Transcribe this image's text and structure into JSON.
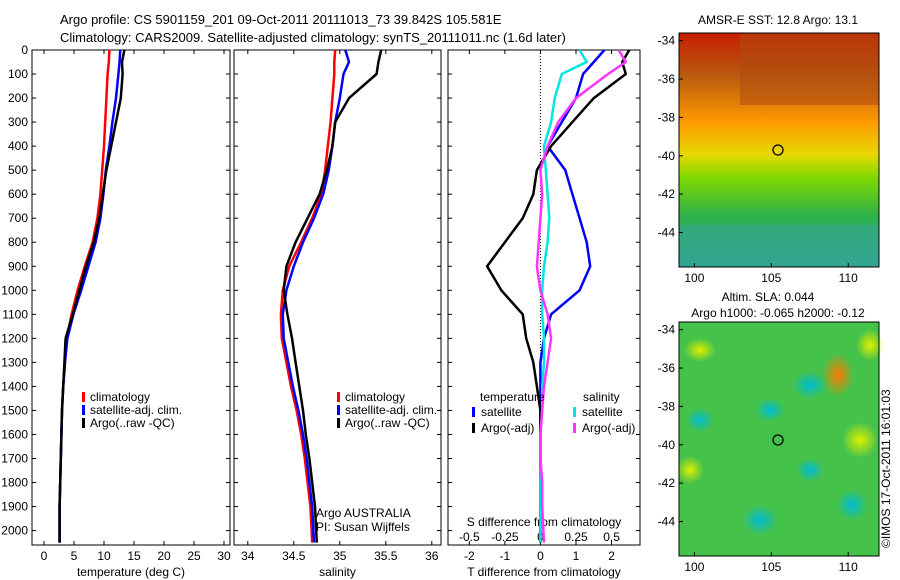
{
  "title": {
    "line1": "Argo profile: CS 5901159_201 09-Oct-2011 20111013_73 39.842S 105.581E",
    "line2": "Climatology: CARS2009. Satellite-adjusted climatology: synTS_20111011.nc (1.6d later)"
  },
  "side_label": "©IMOS 17-Oct-2011 16:01:03",
  "colors": {
    "climatology": "#ff0000",
    "satellite": "#0000ff",
    "argo": "#000000",
    "satellite_s": "#00e5e5",
    "argo_s": "#ff33ff"
  },
  "chart_data": [
    {
      "type": "line",
      "xlabel": "temperature (deg C)",
      "ylabel": "",
      "xlim": [
        -2,
        31
      ],
      "ylim": [
        2060,
        0
      ],
      "xticks": [
        0,
        5,
        10,
        15,
        20,
        25,
        30
      ],
      "yticks": [
        0,
        100,
        200,
        300,
        400,
        500,
        600,
        700,
        800,
        900,
        1000,
        1100,
        1200,
        1300,
        1400,
        1500,
        1600,
        1700,
        1800,
        1900,
        2000
      ],
      "legend": [
        "climatology",
        "satellite-adj. clim.",
        "Argo(..raw -QC)"
      ],
      "series": [
        {
          "name": "climatology",
          "x": [
            10.9,
            10.8,
            10.6,
            10.4,
            10.2,
            10.0,
            9.7,
            9.4,
            8.9,
            8.1,
            6.8,
            5.6,
            4.6,
            3.8,
            3.5,
            3.2,
            3.0,
            2.9,
            2.8,
            2.7,
            2.6,
            2.6
          ],
          "y": [
            0,
            50,
            100,
            200,
            300,
            400,
            500,
            600,
            700,
            800,
            900,
            1000,
            1100,
            1200,
            1300,
            1400,
            1500,
            1600,
            1700,
            1800,
            1900,
            2050
          ]
        },
        {
          "name": "satellite-adj. clim.",
          "x": [
            12.7,
            12.6,
            12.4,
            12.0,
            11.4,
            10.9,
            10.3,
            9.9,
            9.4,
            8.6,
            7.4,
            6.2,
            4.9,
            3.9,
            3.5,
            3.2,
            3.0,
            2.9,
            2.8,
            2.7,
            2.6,
            2.6
          ],
          "y": [
            0,
            50,
            100,
            200,
            300,
            400,
            500,
            600,
            700,
            800,
            900,
            1000,
            1100,
            1200,
            1300,
            1400,
            1500,
            1600,
            1700,
            1800,
            1900,
            2050
          ]
        },
        {
          "name": "Argo(..raw -QC)",
          "x": [
            13.4,
            13.0,
            13.1,
            12.8,
            12.0,
            11.2,
            10.4,
            9.8,
            9.2,
            8.3,
            7.0,
            5.9,
            4.8,
            3.6,
            3.4,
            3.2,
            3.0,
            2.9,
            2.8,
            2.7,
            2.6,
            2.6
          ],
          "y": [
            0,
            50,
            100,
            200,
            300,
            400,
            500,
            600,
            700,
            800,
            900,
            1000,
            1100,
            1200,
            1300,
            1400,
            1500,
            1600,
            1700,
            1800,
            1900,
            2050
          ]
        }
      ]
    },
    {
      "type": "line",
      "xlabel": "salinity",
      "ylabel": "",
      "xlim": [
        33.85,
        36.1
      ],
      "ylim": [
        2060,
        0
      ],
      "xticks": [
        34,
        34.5,
        35,
        35.5,
        36
      ],
      "legend": [
        "climatology",
        "satellite-adj. clim.",
        "Argo(..raw -QC)"
      ],
      "annotation": [
        "Argo AUSTRALIA",
        "PI: Susan Wijffels"
      ],
      "series": [
        {
          "name": "climatology",
          "x": [
            34.95,
            34.94,
            34.94,
            34.92,
            34.9,
            34.87,
            34.84,
            34.8,
            34.7,
            34.58,
            34.45,
            34.38,
            34.36,
            34.37,
            34.42,
            34.47,
            34.53,
            34.58,
            34.62,
            34.65,
            34.68,
            34.7
          ],
          "y": [
            0,
            50,
            100,
            200,
            300,
            400,
            500,
            600,
            700,
            800,
            900,
            1000,
            1100,
            1200,
            1300,
            1400,
            1500,
            1600,
            1700,
            1800,
            1900,
            2050
          ]
        },
        {
          "name": "satellite-adj. clim.",
          "x": [
            35.06,
            35.1,
            35.04,
            35.0,
            34.95,
            34.92,
            34.88,
            34.82,
            34.72,
            34.6,
            34.5,
            34.42,
            34.38,
            34.39,
            34.44,
            34.49,
            34.55,
            34.6,
            34.64,
            34.67,
            34.7,
            34.72
          ],
          "y": [
            0,
            50,
            100,
            200,
            300,
            400,
            500,
            600,
            700,
            800,
            900,
            1000,
            1100,
            1200,
            1300,
            1400,
            1500,
            1600,
            1700,
            1800,
            1900,
            2050
          ]
        },
        {
          "name": "Argo(..raw -QC)",
          "x": [
            35.45,
            35.42,
            35.4,
            35.1,
            34.95,
            34.92,
            34.86,
            34.78,
            34.65,
            34.52,
            34.42,
            34.39,
            34.43,
            34.48,
            34.52,
            34.56,
            34.6,
            34.63,
            34.67,
            34.7,
            34.73,
            34.75
          ],
          "y": [
            0,
            50,
            100,
            200,
            300,
            400,
            500,
            600,
            700,
            800,
            900,
            1000,
            1100,
            1200,
            1300,
            1400,
            1500,
            1600,
            1700,
            1800,
            1900,
            2050
          ]
        }
      ]
    },
    {
      "type": "line",
      "xlabel": "T difference from climatology",
      "xlabel2": "S difference from climatology",
      "xlim": [
        -2.6,
        2.8
      ],
      "ylim": [
        2060,
        0
      ],
      "xticks": [
        -2,
        -1,
        0,
        1,
        2
      ],
      "xticks2_values": [
        -0.5,
        -0.25,
        0,
        0.25,
        0.5
      ],
      "xticks2_labels": [
        "-0.5",
        "-0.25",
        "0",
        "0.25",
        "0.5"
      ],
      "legend_groups": [
        {
          "heading": "temperature",
          "items": [
            "satellite",
            "Argo(-adj)"
          ]
        },
        {
          "heading": "salinity",
          "items": [
            "satellite",
            "Argo(-adj)"
          ]
        }
      ],
      "series": [
        {
          "name": "temperature satellite",
          "x": [
            1.8,
            1.5,
            1.2,
            1.0,
            0.6,
            0.2,
            0.7,
            0.9,
            1.1,
            1.3,
            1.4,
            1.1,
            0.3,
            0.1,
            0,
            0,
            0,
            0,
            0,
            0,
            0,
            0
          ],
          "y": [
            0,
            50,
            100,
            200,
            300,
            400,
            500,
            600,
            700,
            800,
            900,
            1000,
            1100,
            1200,
            1300,
            1400,
            1500,
            1600,
            1700,
            1800,
            1900,
            2050
          ]
        },
        {
          "name": "temperature Argo(-adj)",
          "x": [
            2.5,
            2.3,
            2.4,
            1.5,
            0.9,
            0.3,
            -0.1,
            -0.2,
            -0.5,
            -1.0,
            -1.5,
            -1.1,
            -0.5,
            -0.4,
            -0.2,
            -0.1,
            0,
            0,
            0,
            0,
            0,
            0
          ],
          "y": [
            0,
            50,
            100,
            200,
            300,
            400,
            500,
            600,
            700,
            800,
            900,
            1000,
            1100,
            1200,
            1300,
            1400,
            1500,
            1600,
            1700,
            1800,
            1900,
            2050
          ]
        },
        {
          "name": "salinity satellite",
          "x": [
            1.1,
            1.3,
            0.6,
            0.4,
            0.3,
            0.1,
            0.15,
            0.2,
            0.25,
            0.2,
            0.1,
            0.05,
            0.05,
            0.1,
            0.1,
            0.05,
            0.05,
            0,
            0,
            0,
            0,
            0
          ],
          "y": [
            0,
            50,
            100,
            200,
            300,
            400,
            500,
            600,
            700,
            800,
            900,
            1000,
            1100,
            1200,
            1300,
            1400,
            1500,
            1600,
            1700,
            1800,
            1900,
            2050
          ]
        },
        {
          "name": "salinity Argo(-adj)",
          "x": [
            2.2,
            2.4,
            1.9,
            1.0,
            0.5,
            0.2,
            0.0,
            0.05,
            0.0,
            -0.05,
            -0.1,
            0.0,
            0.2,
            0.3,
            0.2,
            0.1,
            0.05,
            0.0,
            0.0,
            0.05,
            0.05,
            0.1
          ],
          "y": [
            0,
            50,
            100,
            200,
            300,
            400,
            500,
            600,
            700,
            800,
            900,
            1000,
            1100,
            1200,
            1300,
            1400,
            1500,
            1600,
            1700,
            1800,
            1900,
            2050
          ]
        }
      ]
    },
    {
      "type": "heatmap",
      "title": "AMSR-E SST: 12.8 Argo: 13.1",
      "xlim": [
        99,
        112
      ],
      "ylim": [
        -45.8,
        -33.6
      ],
      "xticks": [
        100,
        105,
        110
      ],
      "yticks": [
        -34,
        -36,
        -38,
        -40,
        -42,
        -44
      ],
      "marker": {
        "lon": 105.581,
        "lat": -39.842
      }
    },
    {
      "type": "heatmap",
      "title": "Altim. SLA: 0.044",
      "subtitle": "Argo h1000: -0.065 h2000: -0.12",
      "xlim": [
        99,
        112
      ],
      "ylim": [
        -45.8,
        -33.6
      ],
      "xticks": [
        100,
        105,
        110
      ],
      "yticks": [
        -34,
        -36,
        -38,
        -40,
        -42,
        -44
      ],
      "marker": {
        "lon": 105.581,
        "lat": -39.842
      }
    }
  ]
}
